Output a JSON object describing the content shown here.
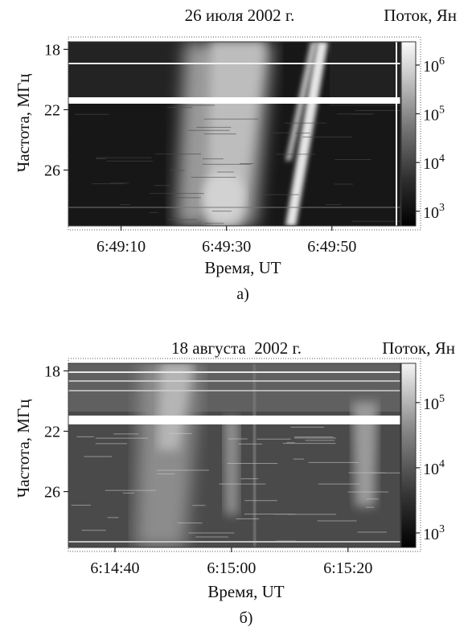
{
  "panels": [
    {
      "id": "a",
      "title": "26 июля 2002 г.",
      "cbar_title": "Поток, Ян",
      "ylabel": "Частота, МГц",
      "xlabel": "Время, UT",
      "caption": "а)",
      "chart_data": {
        "type": "heatmap",
        "title": "26 июля 2002 г.",
        "xlabel": "Время, UT",
        "ylabel": "Частота, МГц",
        "x_range": [
          "6:49:00",
          "6:50:03"
        ],
        "x_ticks": [
          "6:49:10",
          "6:49:30",
          "6:49:50"
        ],
        "y_range": [
          17.5,
          29.7
        ],
        "y_ticks": [
          18,
          22,
          26
        ],
        "y_inverted": true,
        "colorbar": {
          "label": "Поток, Ян",
          "scale": "log",
          "ticks": [
            "10^6",
            "10^5",
            "10^4",
            "10^3"
          ],
          "range": [
            500,
            3000000
          ]
        },
        "features": [
          {
            "kind": "broad burst",
            "start": "6:49:21",
            "end": "6:49:40",
            "peak": "6:49:31"
          },
          {
            "kind": "drifting burst",
            "time_at_18MHz": "6:49:46",
            "time_at_29MHz": "6:49:41"
          },
          {
            "kind": "horizontal gap",
            "frequency_MHz": 21.6
          }
        ]
      }
    },
    {
      "id": "b",
      "title": "18 августа  2002 г.",
      "cbar_title": "Поток, Ян",
      "ylabel": "Частота, МГц",
      "xlabel": "Время, UT",
      "caption": "б)",
      "chart_data": {
        "type": "heatmap",
        "title": "18 августа  2002 г.",
        "xlabel": "Время, UT",
        "ylabel": "Частота, МГц",
        "x_range": [
          "6:14:32",
          "6:15:29"
        ],
        "x_ticks": [
          "6:14:40",
          "6:15:00",
          "6:15:20"
        ],
        "y_range": [
          17.5,
          29.7
        ],
        "y_ticks": [
          18,
          22,
          26
        ],
        "y_inverted": true,
        "colorbar": {
          "label": "Поток, Ян",
          "scale": "log",
          "ticks": [
            "10^5",
            "10^4",
            "10^3"
          ],
          "range": [
            600,
            400000
          ]
        },
        "features": [
          {
            "kind": "diffuse burst",
            "start": "6:14:47",
            "end": "6:14:54"
          },
          {
            "kind": "burst",
            "start": "6:14:57",
            "end": "6:15:01"
          },
          {
            "kind": "burst",
            "start": "6:15:16",
            "end": "6:15:20"
          },
          {
            "kind": "horizontal gap",
            "frequency_MHz": 21.5
          }
        ]
      }
    }
  ]
}
